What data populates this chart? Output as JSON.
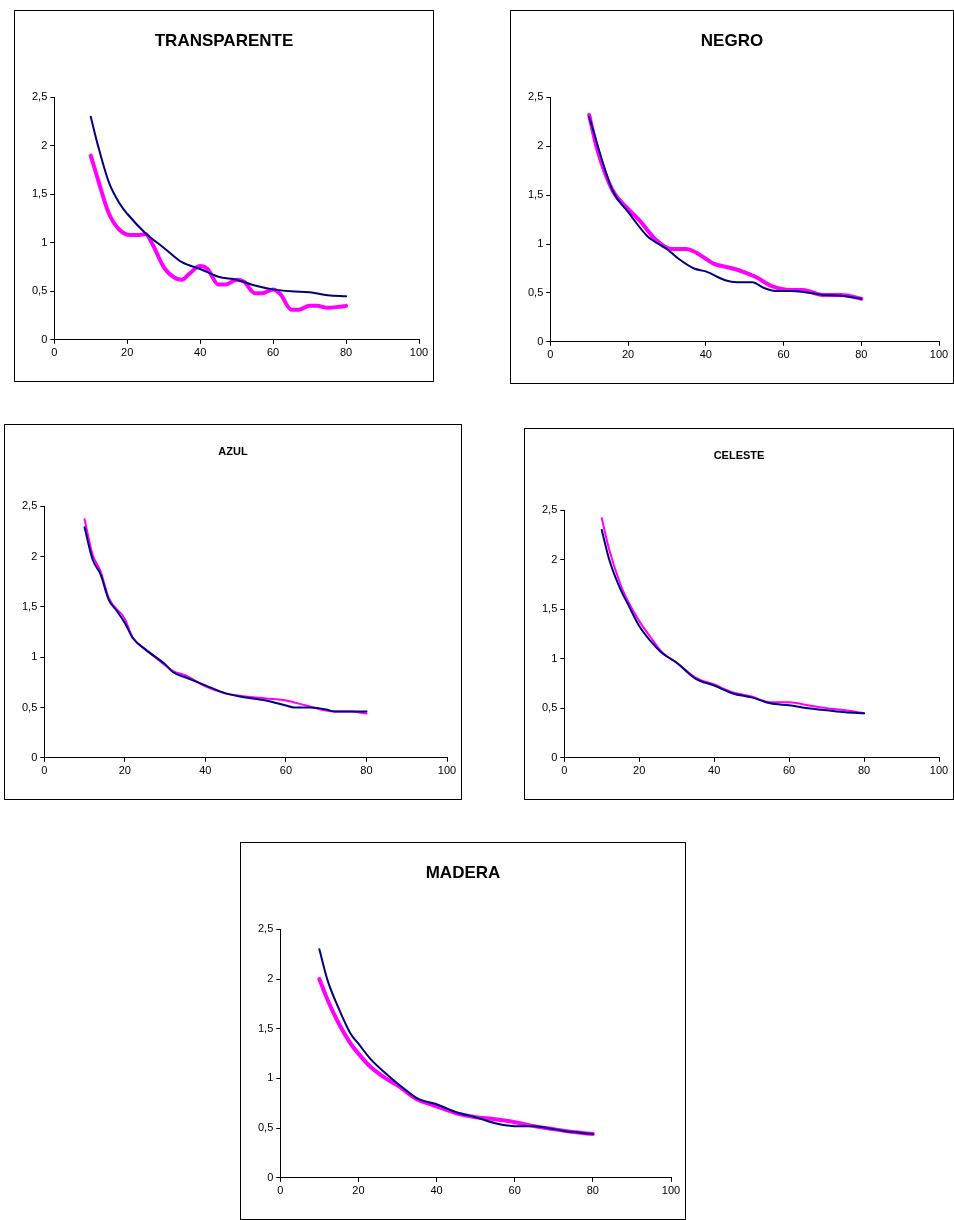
{
  "chart_data": [
    {
      "type": "line",
      "title": "TRANSPARENTE",
      "xlim": [
        0,
        100
      ],
      "xticks": [
        0,
        20,
        40,
        60,
        80,
        100
      ],
      "ylim": [
        0,
        2.5
      ],
      "yticks": [
        0,
        {
          "value": 0.5,
          "label": "0,5"
        },
        1,
        {
          "value": 1.5,
          "label": "1,5"
        },
        2,
        {
          "value": 2.5,
          "label": "2,5"
        }
      ],
      "grid": false,
      "legend": false,
      "marker": "none",
      "series": [
        {
          "color": "#000080",
          "x": [
            10,
            12,
            15,
            18,
            20,
            25,
            30,
            35,
            40,
            45,
            50,
            55,
            60,
            65,
            70,
            75,
            80
          ],
          "values": [
            2.3,
            2.0,
            1.62,
            1.4,
            1.3,
            1.1,
            0.95,
            0.8,
            0.73,
            0.65,
            0.62,
            0.56,
            0.52,
            0.5,
            0.49,
            0.46,
            0.45
          ]
        },
        {
          "color": "#ff00ff",
          "x": [
            10,
            12,
            15,
            18,
            21,
            23,
            25,
            27,
            30,
            33,
            35,
            37,
            40,
            42,
            45,
            47,
            50,
            52,
            55,
            57,
            60,
            62,
            65,
            67,
            70,
            72,
            75,
            78,
            80
          ],
          "values": [
            1.9,
            1.65,
            1.3,
            1.13,
            1.08,
            1.08,
            1.09,
            0.98,
            0.75,
            0.64,
            0.62,
            0.68,
            0.76,
            0.73,
            0.57,
            0.57,
            0.62,
            0.6,
            0.48,
            0.48,
            0.52,
            0.47,
            0.31,
            0.31,
            0.35,
            0.35,
            0.33,
            0.34,
            0.35
          ]
        }
      ]
    },
    {
      "type": "line",
      "title": "NEGRO",
      "xlim": [
        0,
        100
      ],
      "xticks": [
        0,
        20,
        40,
        60,
        80,
        100
      ],
      "ylim": [
        0,
        2.5
      ],
      "yticks": [
        0,
        {
          "value": 0.5,
          "label": "0,5"
        },
        1,
        {
          "value": 1.5,
          "label": "1,5"
        },
        2,
        {
          "value": 2.5,
          "label": "2,5"
        }
      ],
      "grid": false,
      "legend": false,
      "marker": "none",
      "series": [
        {
          "color": "#000080",
          "x": [
            10,
            16,
            20,
            25,
            30,
            33,
            37,
            40,
            45,
            48,
            52,
            55,
            58,
            62,
            65,
            70,
            75,
            80
          ],
          "values": [
            2.3,
            1.55,
            1.33,
            1.08,
            0.95,
            0.85,
            0.75,
            0.72,
            0.63,
            0.61,
            0.61,
            0.55,
            0.52,
            0.52,
            0.51,
            0.48,
            0.47,
            0.44
          ]
        },
        {
          "color": "#ff00ff",
          "x": [
            10,
            12,
            16,
            20,
            23,
            27,
            31,
            35,
            40,
            42,
            47,
            50,
            53,
            57,
            62,
            65,
            70,
            75,
            80
          ],
          "values": [
            2.32,
            1.98,
            1.55,
            1.36,
            1.24,
            1.05,
            0.95,
            0.95,
            0.85,
            0.8,
            0.75,
            0.71,
            0.66,
            0.57,
            0.53,
            0.53,
            0.48,
            0.48,
            0.44
          ]
        }
      ]
    },
    {
      "type": "line",
      "title": "AZUL",
      "xlim": [
        0,
        100
      ],
      "xticks": [
        0,
        20,
        40,
        60,
        80,
        100
      ],
      "ylim": [
        0,
        2.5
      ],
      "yticks": [
        0,
        {
          "value": 0.5,
          "label": "0,5"
        },
        1,
        {
          "value": 1.5,
          "label": "1,5"
        },
        2,
        {
          "value": 2.5,
          "label": "2,5"
        }
      ],
      "grid": false,
      "legend": false,
      "marker": "none",
      "series": [
        {
          "color": "#000080",
          "x": [
            10,
            12,
            14,
            16,
            18,
            20,
            22,
            25,
            30,
            32,
            35,
            40,
            45,
            50,
            55,
            60,
            62,
            66,
            70,
            72,
            80
          ],
          "values": [
            2.29,
            1.97,
            1.82,
            1.57,
            1.46,
            1.34,
            1.19,
            1.08,
            0.93,
            0.85,
            0.8,
            0.72,
            0.64,
            0.6,
            0.57,
            0.52,
            0.5,
            0.5,
            0.48,
            0.46,
            0.46
          ]
        },
        {
          "color": "#ff00ff",
          "x": [
            10,
            12,
            14,
            16,
            20,
            22,
            25,
            30,
            32,
            35,
            40,
            45,
            50,
            55,
            60,
            65,
            72,
            76,
            80
          ],
          "values": [
            2.37,
            2.02,
            1.85,
            1.59,
            1.38,
            1.19,
            1.08,
            0.92,
            0.86,
            0.82,
            0.71,
            0.64,
            0.61,
            0.59,
            0.57,
            0.52,
            0.46,
            0.46,
            0.44
          ]
        }
      ]
    },
    {
      "type": "line",
      "title": "CELESTE",
      "xlim": [
        0,
        100
      ],
      "xticks": [
        0,
        20,
        40,
        60,
        80,
        100
      ],
      "ylim": [
        0,
        2.5
      ],
      "yticks": [
        0,
        {
          "value": 0.5,
          "label": "0,5"
        },
        1,
        {
          "value": 1.5,
          "label": "1,5"
        },
        2,
        {
          "value": 2.5,
          "label": "2,5"
        }
      ],
      "grid": false,
      "legend": false,
      "marker": "none",
      "series": [
        {
          "color": "#000080",
          "x": [
            10,
            12,
            15,
            17,
            20,
            23,
            26,
            30,
            35,
            40,
            45,
            50,
            55,
            60,
            65,
            70,
            75,
            80
          ],
          "values": [
            2.3,
            2.0,
            1.7,
            1.55,
            1.33,
            1.18,
            1.06,
            0.96,
            0.8,
            0.73,
            0.65,
            0.61,
            0.55,
            0.53,
            0.5,
            0.48,
            0.46,
            0.45
          ]
        },
        {
          "color": "#ff00ff",
          "x": [
            10,
            12,
            15,
            17,
            20,
            23,
            26,
            30,
            35,
            40,
            45,
            50,
            55,
            60,
            65,
            70,
            75,
            80
          ],
          "values": [
            2.42,
            2.1,
            1.75,
            1.58,
            1.38,
            1.22,
            1.07,
            0.96,
            0.81,
            0.74,
            0.66,
            0.62,
            0.56,
            0.56,
            0.53,
            0.5,
            0.48,
            0.45
          ]
        }
      ]
    },
    {
      "type": "line",
      "title": "MADERA",
      "xlim": [
        0,
        100
      ],
      "xticks": [
        0,
        20,
        40,
        60,
        80,
        100
      ],
      "ylim": [
        0,
        2.5
      ],
      "yticks": [
        0,
        {
          "value": 0.5,
          "label": "0,5"
        },
        1,
        {
          "value": 1.5,
          "label": "1,5"
        },
        2,
        {
          "value": 2.5,
          "label": "2,5"
        }
      ],
      "grid": false,
      "legend": false,
      "marker": "none",
      "series": [
        {
          "color": "#000080",
          "x": [
            10,
            12,
            15,
            18,
            20,
            23,
            27,
            30,
            35,
            40,
            45,
            50,
            55,
            60,
            65,
            70,
            75,
            80
          ],
          "values": [
            2.3,
            2.0,
            1.7,
            1.45,
            1.35,
            1.2,
            1.05,
            0.95,
            0.8,
            0.74,
            0.66,
            0.61,
            0.55,
            0.52,
            0.52,
            0.49,
            0.46,
            0.44
          ]
        },
        {
          "color": "#ff00ff",
          "x": [
            10,
            12,
            15,
            18,
            20,
            23,
            27,
            30,
            35,
            40,
            45,
            50,
            55,
            60,
            65,
            70,
            75,
            80
          ],
          "values": [
            2.0,
            1.8,
            1.55,
            1.35,
            1.25,
            1.12,
            1.0,
            0.93,
            0.79,
            0.72,
            0.65,
            0.61,
            0.59,
            0.56,
            0.52,
            0.49,
            0.46,
            0.44
          ]
        }
      ]
    }
  ]
}
